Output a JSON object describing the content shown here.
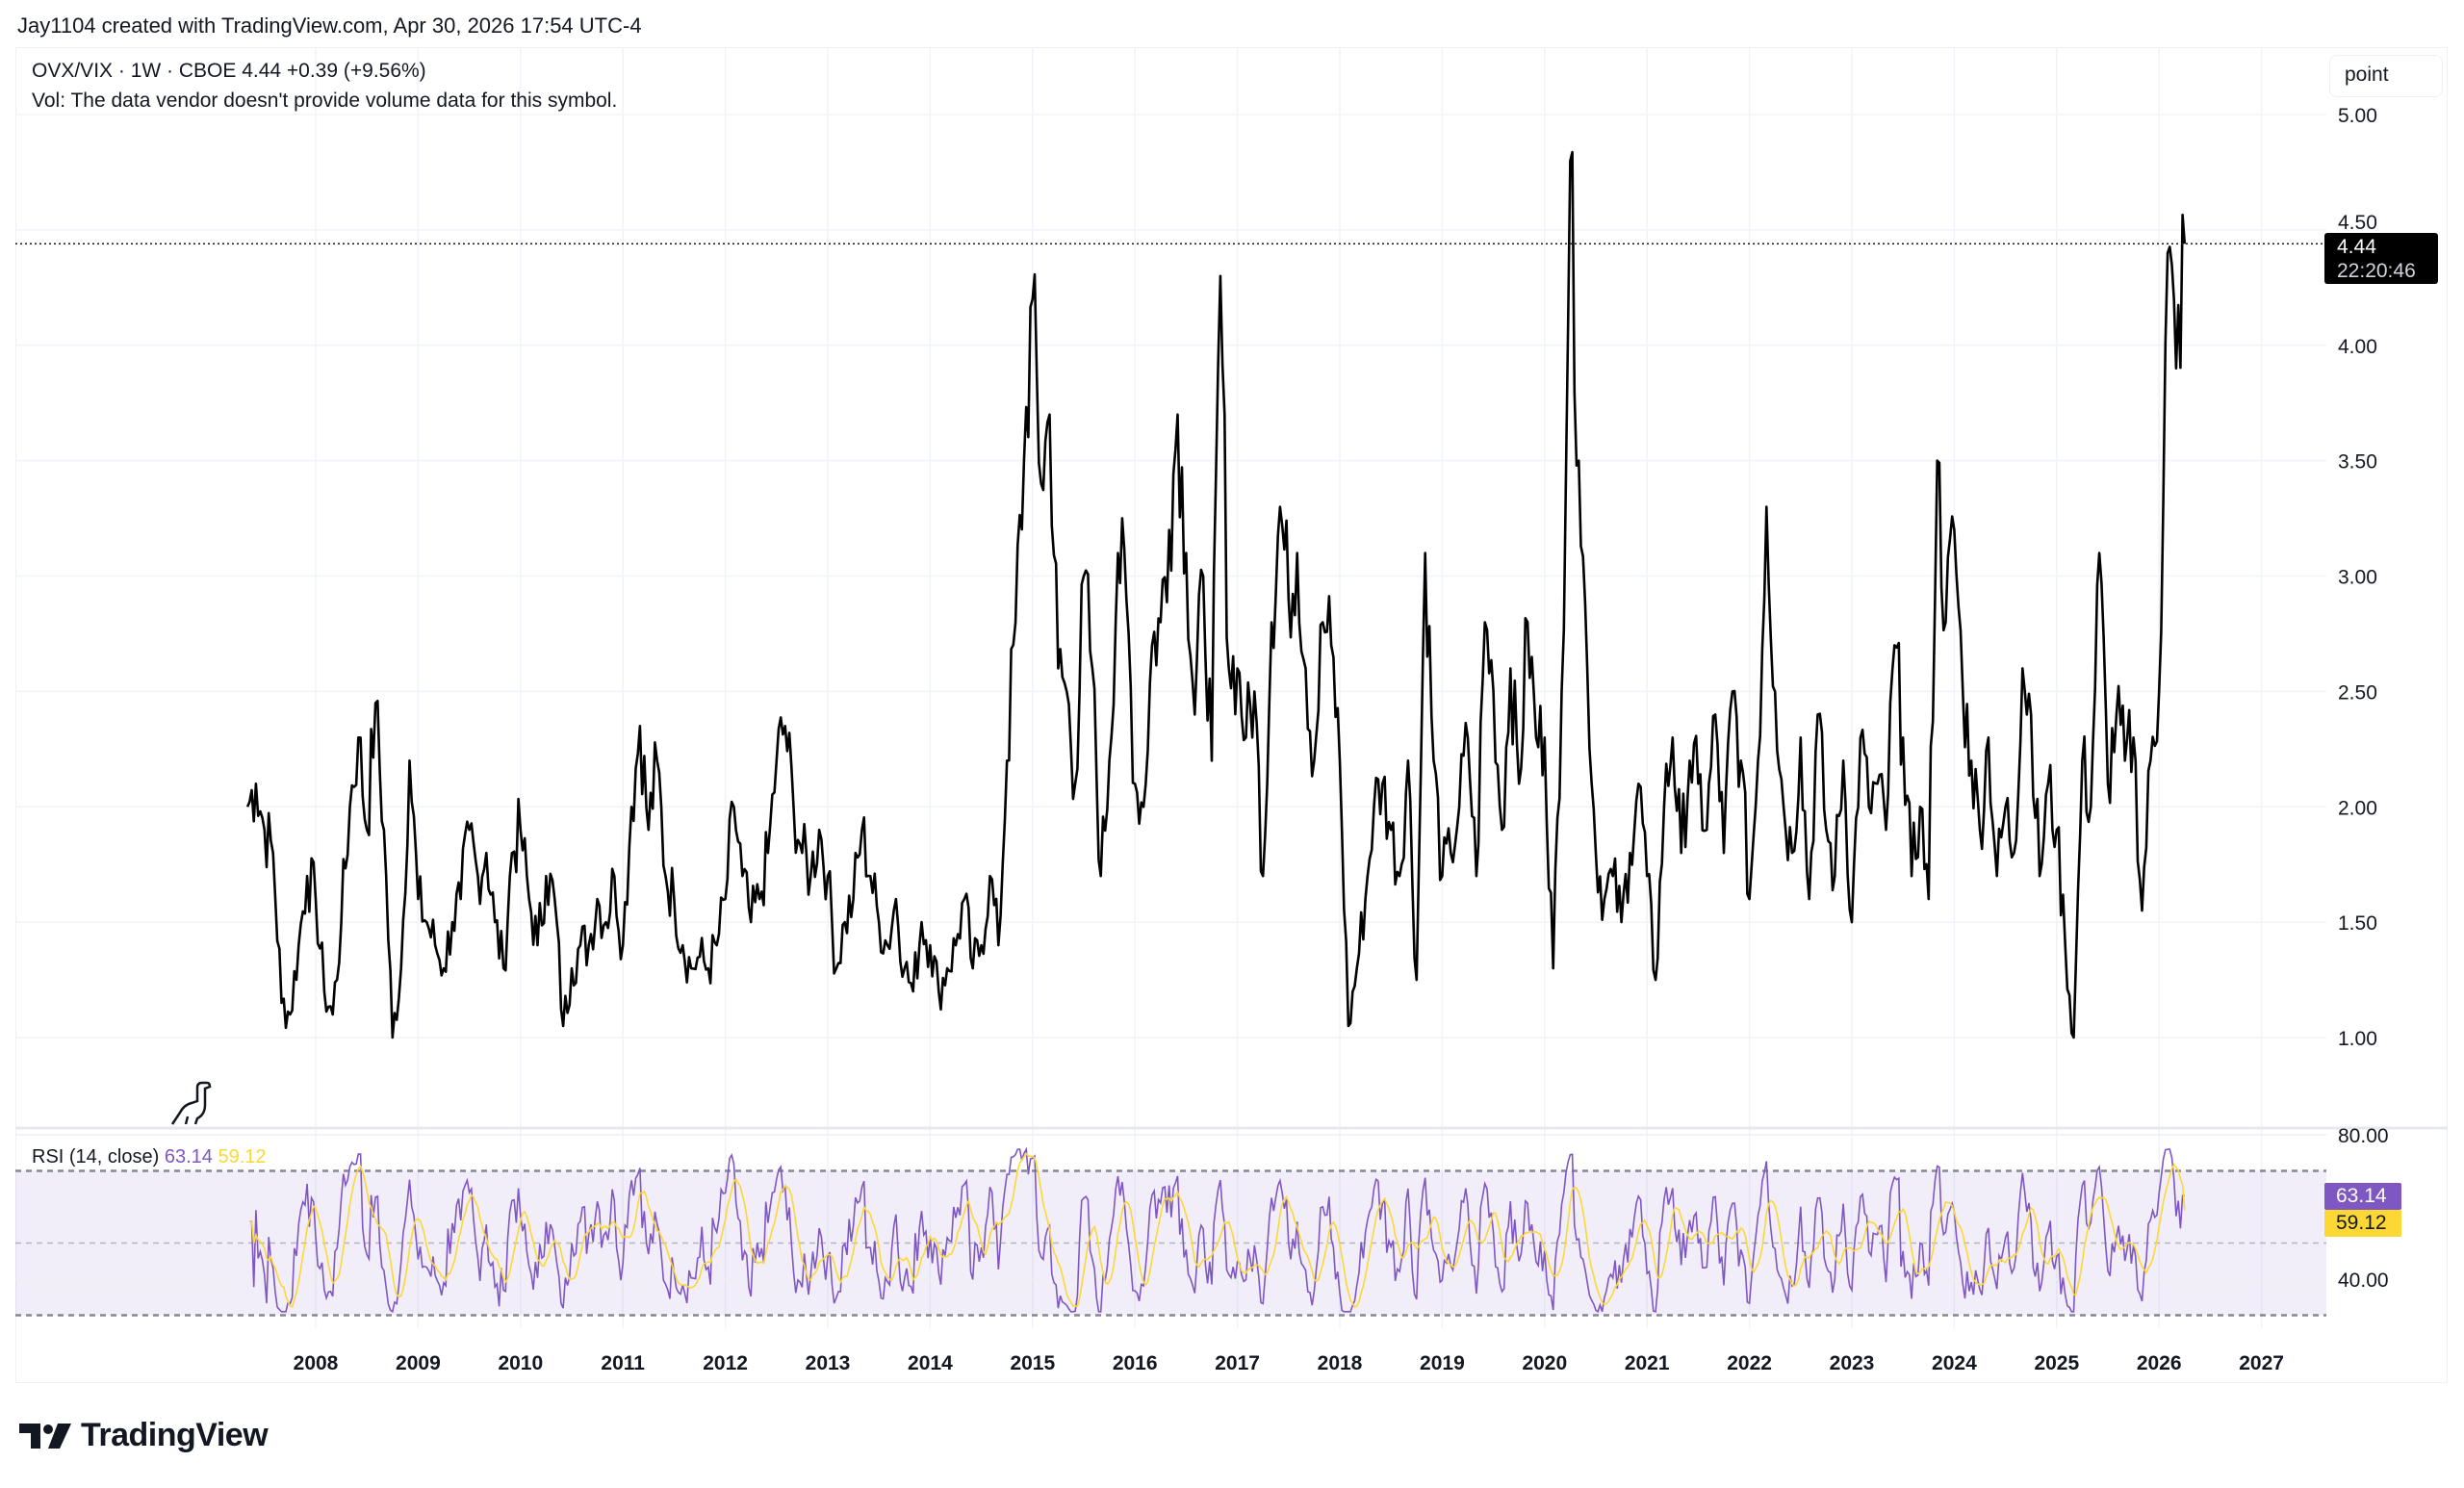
{
  "credit": "Jay1104 created with TradingView.com, Apr 30, 2026 17:54 UTC-4",
  "legend": {
    "symbol_line": "OVX/VIX · 1W · CBOE  4.44  +0.39 (+9.56%)",
    "vol_line": "Vol: The data vendor doesn't provide volume data for this symbol."
  },
  "scale_button": "point",
  "last_price": {
    "value": "4.44",
    "countdown": "22:20:46"
  },
  "rsi_legend": {
    "label": "RSI (14, close)",
    "rsi": "63.14",
    "ma": "59.12"
  },
  "brand": "TradingView",
  "colors": {
    "price": "#000000",
    "rsi": "#7e57c2",
    "rsi_ma": "#fdd835",
    "band": "#7e57c2",
    "grid": "#f0f3fa"
  },
  "chart_data": [
    {
      "type": "line",
      "title": "OVX/VIX · 1W · CBOE",
      "price_ticks": [
        "5.00",
        "4.50",
        "4.00",
        "3.50",
        "3.00",
        "2.50",
        "2.00",
        "1.50",
        "1.00"
      ],
      "ylim": [
        0.7,
        5.2
      ],
      "x_ticks": [
        "2008",
        "2009",
        "2010",
        "2011",
        "2012",
        "2013",
        "2014",
        "2015",
        "2016",
        "2017",
        "2018",
        "2019",
        "2020",
        "2021",
        "2022",
        "2023",
        "2024",
        "2025",
        "2026",
        "2027"
      ],
      "grid": true,
      "start_month": "2007-05",
      "close_monthly": [
        2.0,
        2.1,
        1.9,
        1.8,
        1.15,
        1.1,
        1.4,
        1.7,
        1.6,
        1.2,
        1.1,
        1.5,
        2.0,
        2.3,
        1.9,
        2.45,
        1.9,
        1.0,
        1.3,
        2.2,
        1.6,
        1.5,
        1.4,
        1.3,
        1.5,
        1.6,
        1.9,
        1.7,
        1.8,
        1.5,
        1.3,
        1.8,
        1.9,
        1.6,
        1.4,
        1.7,
        1.6,
        1.05,
        1.3,
        1.4,
        1.4,
        1.6,
        1.5,
        1.7,
        1.4,
        2.0,
        2.35,
        1.9,
        2.2,
        1.7,
        1.6,
        1.4,
        1.3,
        1.35,
        1.3,
        1.4,
        1.6,
        2.0,
        1.7,
        1.5,
        1.6,
        1.8,
        2.2,
        2.35,
        2.0,
        1.8,
        1.7,
        1.9,
        1.7,
        1.3,
        1.5,
        1.6,
        1.9,
        1.7,
        1.5,
        1.4,
        1.6,
        1.3,
        1.2,
        1.5,
        1.4,
        1.2,
        1.3,
        1.4,
        1.6,
        1.3,
        1.4,
        1.7,
        1.4,
        2.2,
        2.8,
        3.5,
        4.2,
        3.4,
        3.7,
        2.6,
        2.5,
        2.1,
        3.0,
        2.6,
        1.7,
        2.2,
        3.1,
        2.9,
        2.1,
        2.0,
        2.7,
        2.8,
        3.2,
        3.7,
        3.1,
        2.4,
        3.0,
        2.2,
        4.3,
        2.6,
        2.6,
        2.3,
        2.5,
        1.7,
        2.8,
        3.3,
        2.9,
        3.1,
        2.6,
        2.2,
        2.8,
        2.7,
        2.2,
        1.05,
        1.3,
        1.6,
        2.0,
        2.1,
        1.9,
        1.7,
        2.2,
        1.25,
        3.1,
        2.2,
        1.7,
        1.8,
        2.0,
        2.3,
        1.7,
        2.8,
        2.5,
        1.9,
        2.6,
        2.1,
        2.8,
        2.3,
        2.3,
        1.3,
        2.5,
        4.8,
        3.5,
        2.6,
        1.8,
        1.6,
        1.7,
        1.5,
        1.8,
        2.1,
        1.7,
        1.25,
        2.0,
        2.3,
        1.8,
        2.2,
        2.1,
        1.9,
        2.4,
        1.8,
        2.5,
        2.2,
        1.6,
        2.2,
        3.3,
        2.5,
        2.0,
        1.8,
        2.3,
        1.6,
        2.4,
        1.9,
        1.7,
        2.2,
        1.5,
        2.3,
        2.0,
        2.1,
        1.9,
        2.7,
        2.3,
        1.7,
        2.0,
        1.6,
        3.5,
        2.8,
        3.2,
        2.5,
        2.2,
        1.9,
        2.3,
        1.7,
        2.0,
        1.8,
        2.6,
        2.4,
        1.7,
        2.1,
        1.9,
        1.4,
        1.0,
        2.2,
        2.0,
        3.1,
        2.1,
        2.4,
        2.2,
        2.3,
        1.55,
        2.2,
        2.5,
        4.4,
        3.9,
        4.44
      ],
      "last": 4.44
    },
    {
      "type": "line",
      "title": "RSI (14, close)",
      "y_ticks": [
        "80.00",
        "40.00"
      ],
      "ylim": [
        25,
        82
      ],
      "bands": [
        30,
        50,
        70
      ],
      "series": [
        {
          "name": "RSI",
          "last": 63.14
        },
        {
          "name": "RSI-based MA",
          "last": 59.12
        }
      ]
    }
  ]
}
